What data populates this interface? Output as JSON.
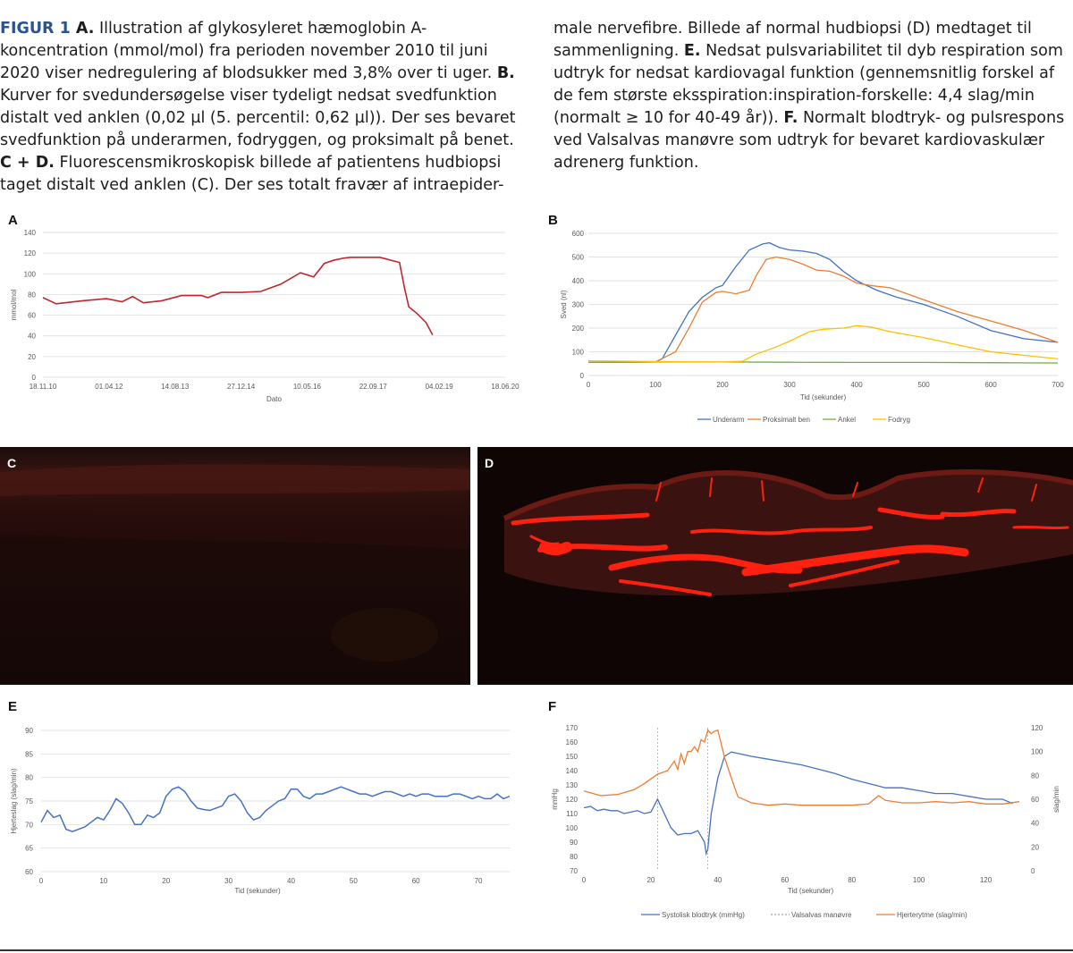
{
  "caption": {
    "left": [
      {
        "t": "FIGUR 1 ",
        "s": "head"
      },
      {
        "t": "A.",
        "s": "b"
      },
      {
        "t": " Illustration af glykosyleret hæmoglobin A-koncentration (mmol/mol) fra perioden november 2010 til juni 2020 viser nedregulering af blodsukker med 3,8% over ti uger. "
      },
      {
        "t": "B.",
        "s": "b"
      },
      {
        "t": " Kurver for svedundersøgelse viser tydeligt nedsat svedfunktion distalt ved anklen (0,02 µl (5. percentil: 0,62 µl)). Der ses bevaret svedfunktion på underarmen, fodryggen, og proksimalt på benet. "
      },
      {
        "t": "C + D.",
        "s": "b"
      },
      {
        "t": " Fluorescensmikroskopisk billede af patientens hudbiopsi taget distalt ved anklen (C). Der ses totalt fravær af intraepider-"
      }
    ],
    "right": [
      {
        "t": "male nervefibre. Billede af normal hudbiopsi (D) medtaget til sammenligning. "
      },
      {
        "t": "E.",
        "s": "b"
      },
      {
        "t": " Nedsat pulsvariabilitet til dyb respiration som udtryk for nedsat kardiovagal funktion (gennemsnitlig forskel af de fem største eksspiration:inspiration-forskelle: 4,4 slag/min (normalt ≥ 10 for 40-49 år)). "
      },
      {
        "t": "F.",
        "s": "b"
      },
      {
        "t": " Normalt blodtryk- og pulsrespons ved Valsalvas manøvre som udtryk for bevaret kardiovaskulær adrenerg funktion."
      }
    ]
  },
  "panels": {
    "A": "A",
    "B": "B",
    "C": "C",
    "D": "D",
    "E": "E",
    "F": "F"
  },
  "chart_data": [
    {
      "id": "A",
      "type": "line",
      "ylabel": "mmol/mol",
      "xlabel": "Dato",
      "ylim": [
        0,
        140
      ],
      "yticks": [
        0,
        20,
        40,
        60,
        80,
        100,
        120,
        140
      ],
      "xtick_labels": [
        "18.11.10",
        "01.04.12",
        "14.08.13",
        "27.12.14",
        "10.05.16",
        "22.09.17",
        "04.02.19",
        "18.06.20"
      ],
      "xlim": [
        0,
        3500
      ],
      "color": "#c0272d",
      "x": [
        0,
        100,
        300,
        480,
        600,
        680,
        760,
        900,
        1050,
        1200,
        1250,
        1350,
        1500,
        1650,
        1800,
        1950,
        2050,
        2130,
        2200,
        2270,
        2330,
        2400,
        2550,
        2700,
        2740,
        2770,
        2830,
        2900,
        2950
      ],
      "values": [
        77,
        71,
        74,
        76,
        73,
        78,
        72,
        74,
        79,
        79,
        77,
        82,
        82,
        83,
        90,
        101,
        97,
        110,
        113,
        115,
        116,
        116,
        116,
        111,
        85,
        68,
        62,
        53,
        41
      ]
    },
    {
      "id": "B",
      "type": "line",
      "ylabel": "Sved (nl)",
      "xlabel": "Tid (sekunder)",
      "ylim": [
        0,
        600
      ],
      "yticks": [
        0,
        100,
        200,
        300,
        400,
        500,
        600
      ],
      "xlim": [
        0,
        700
      ],
      "xticks": [
        0,
        100,
        200,
        300,
        400,
        500,
        600,
        700
      ],
      "series": [
        {
          "name": "Underarm",
          "color": "#4472c4",
          "x": [
            0,
            100,
            110,
            130,
            150,
            170,
            180,
            190,
            200,
            220,
            240,
            260,
            270,
            285,
            300,
            320,
            340,
            360,
            380,
            400,
            430,
            460,
            500,
            550,
            600,
            650,
            700
          ],
          "values": [
            55,
            57,
            70,
            170,
            270,
            330,
            350,
            370,
            380,
            460,
            530,
            555,
            560,
            540,
            530,
            525,
            515,
            490,
            440,
            400,
            360,
            330,
            300,
            250,
            190,
            155,
            140
          ]
        },
        {
          "name": "Proksimalt ben",
          "color": "#ed7d31",
          "x": [
            0,
            100,
            130,
            150,
            170,
            190,
            200,
            220,
            240,
            250,
            265,
            280,
            300,
            320,
            340,
            360,
            380,
            400,
            420,
            450,
            500,
            550,
            600,
            650,
            700
          ],
          "values": [
            55,
            57,
            100,
            200,
            310,
            350,
            355,
            345,
            360,
            420,
            490,
            500,
            490,
            470,
            445,
            440,
            420,
            390,
            380,
            370,
            320,
            270,
            230,
            190,
            140
          ]
        },
        {
          "name": "Ankel",
          "color": "#70ad47",
          "x": [
            0,
            100,
            200,
            300,
            400,
            500,
            600,
            700
          ],
          "values": [
            55,
            57,
            57,
            56,
            55,
            55,
            54,
            53
          ]
        },
        {
          "name": "Fodryg",
          "color": "#ffc000",
          "x": [
            0,
            100,
            200,
            230,
            250,
            280,
            300,
            330,
            350,
            380,
            400,
            420,
            450,
            480,
            500,
            550,
            600,
            650,
            700
          ],
          "values": [
            62,
            59,
            57,
            60,
            90,
            120,
            145,
            185,
            195,
            200,
            210,
            205,
            185,
            170,
            160,
            130,
            100,
            85,
            70
          ]
        }
      ]
    },
    {
      "id": "E",
      "type": "line",
      "ylabel": "Hjerteslag (slag/min)",
      "xlabel": "Tid (sekunder)",
      "ylim": [
        60,
        90
      ],
      "yticks": [
        60,
        65,
        70,
        75,
        80,
        85,
        90
      ],
      "xlim": [
        0,
        75
      ],
      "xticks": [
        0,
        10,
        20,
        30,
        40,
        50,
        60,
        70
      ],
      "color": "#4472c4",
      "x": [
        0,
        1,
        2,
        3,
        4,
        5,
        6,
        7,
        8,
        9,
        10,
        11,
        12,
        13,
        14,
        15,
        16,
        17,
        18,
        19,
        20,
        21,
        22,
        23,
        24,
        25,
        26,
        27,
        28,
        29,
        30,
        31,
        32,
        33,
        34,
        35,
        36,
        37,
        38,
        39,
        40,
        41,
        42,
        43,
        44,
        45,
        46,
        47,
        48,
        49,
        50,
        51,
        52,
        53,
        54,
        55,
        56,
        57,
        58,
        59,
        60,
        61,
        62,
        63,
        64,
        65,
        66,
        67,
        68,
        69,
        70,
        71,
        72,
        73,
        74,
        75
      ],
      "values": [
        70.5,
        73,
        71.5,
        72,
        69,
        68.5,
        69,
        69.5,
        70.5,
        71.5,
        71,
        73,
        75.5,
        74.5,
        72.5,
        70,
        70,
        72,
        71.5,
        72.5,
        76,
        77.5,
        78,
        77,
        75,
        73.5,
        73.2,
        73,
        73.5,
        74,
        76,
        76.5,
        75,
        72.5,
        71,
        71.5,
        73,
        74,
        75,
        75.5,
        77.5,
        77.5,
        76,
        75.5,
        76.5,
        76.5,
        77,
        77.5,
        78,
        77.5,
        77,
        76.5,
        76.5,
        76,
        76.5,
        77,
        77,
        76.5,
        76,
        76.5,
        76,
        76.5,
        76.5,
        76,
        76,
        76,
        76.5,
        76.5,
        76,
        75.5,
        76,
        75.5,
        75.5,
        76.5,
        75.5,
        76
      ]
    },
    {
      "id": "F",
      "type": "line",
      "ylabel": "mmHg",
      "y2label": "slag/min",
      "xlabel": "Tid (sekunder)",
      "ylim": [
        70,
        170
      ],
      "yticks": [
        70,
        80,
        90,
        100,
        110,
        120,
        130,
        140,
        150,
        160,
        170
      ],
      "y2lim": [
        0,
        120
      ],
      "y2ticks": [
        0,
        20,
        40,
        60,
        80,
        100,
        120
      ],
      "xlim": [
        0,
        130
      ],
      "xticks": [
        0,
        20,
        40,
        60,
        80,
        100,
        120
      ],
      "vlines": [
        22,
        37
      ],
      "series": [
        {
          "name": "Systolisk blodtryk (mmHg)",
          "color": "#4472c4",
          "axis": "left",
          "x": [
            0,
            2,
            4,
            6,
            8,
            10,
            12,
            14,
            16,
            18,
            20,
            22,
            24,
            26,
            28,
            30,
            32,
            34,
            36,
            36.5,
            37,
            38,
            40,
            42,
            44,
            46,
            50,
            55,
            60,
            65,
            70,
            75,
            80,
            85,
            90,
            95,
            100,
            105,
            110,
            115,
            120,
            125,
            128
          ],
          "values": [
            114,
            115,
            112,
            113,
            112,
            112,
            110,
            111,
            112,
            110,
            111,
            120,
            110,
            100,
            95,
            96,
            96,
            98,
            90,
            82,
            85,
            110,
            135,
            150,
            153,
            152,
            150,
            148,
            146,
            144,
            141,
            138,
            134,
            131,
            128,
            128,
            126,
            124,
            124,
            122,
            120,
            120,
            117
          ]
        },
        {
          "name": "Valsalvas manøvre",
          "color": "#a0a0a0",
          "axis": "left",
          "dashed": true,
          "x": [],
          "values": []
        },
        {
          "name": "Hjerterytme (slag/min)",
          "color": "#ed7d31",
          "axis": "right",
          "x": [
            0,
            5,
            10,
            15,
            18,
            20,
            22,
            25,
            27,
            28,
            29,
            30,
            31,
            32,
            33,
            34,
            35,
            36,
            37,
            38,
            39,
            40,
            42,
            44,
            46,
            50,
            55,
            60,
            65,
            70,
            75,
            80,
            85,
            88,
            90,
            95,
            100,
            105,
            110,
            115,
            120,
            125,
            130
          ],
          "values": [
            67,
            63,
            64,
            68,
            73,
            77,
            81,
            84,
            92,
            85,
            98,
            90,
            100,
            100,
            104,
            100,
            110,
            108,
            118,
            115,
            117,
            118,
            95,
            78,
            62,
            57,
            55,
            56,
            55,
            55,
            55,
            55,
            56,
            63,
            59,
            57,
            57,
            58,
            57,
            58,
            56,
            56,
            58
          ]
        }
      ]
    }
  ]
}
